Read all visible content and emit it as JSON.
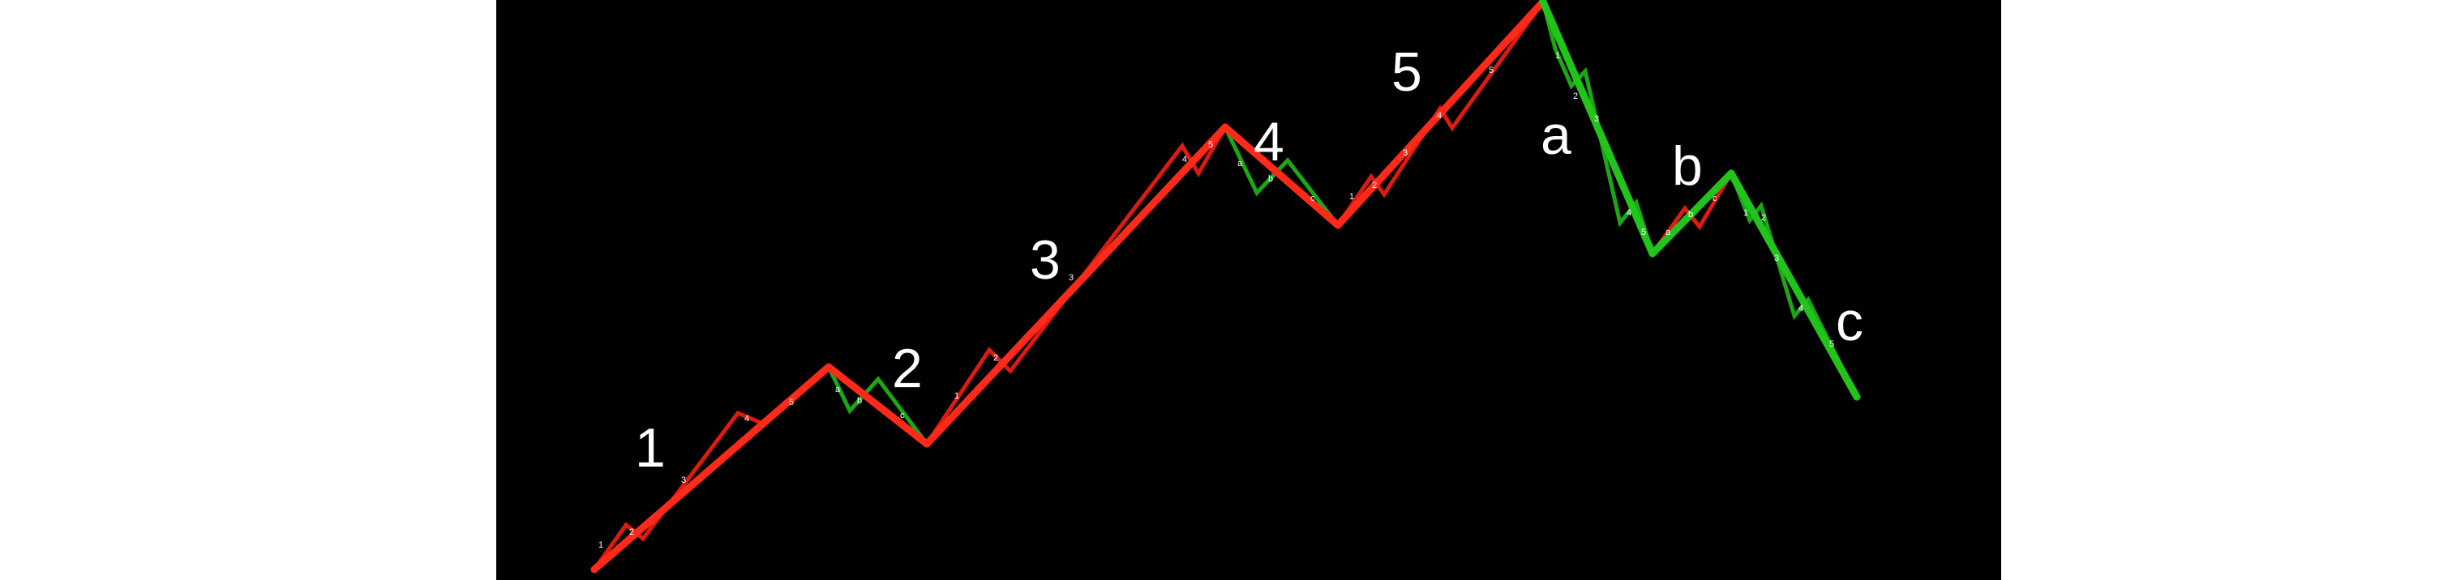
{
  "diagram": {
    "background_color": "#000000",
    "margin_color": "#ffffff",
    "impulse_color": "#ff2a1a",
    "impulse_sub_color": "#dd1b10",
    "correction_color": "#22c41c",
    "correction_sub_color": "#1aa814",
    "label_color": "#ffffff",
    "labels": {
      "wave1": "1",
      "wave2": "2",
      "wave3": "3",
      "wave4": "4",
      "wave5": "5",
      "waveA": "a",
      "waveB": "b",
      "waveC": "c"
    },
    "sub_labels": {
      "s1": "1",
      "s2": "2",
      "s3": "3",
      "s4": "4",
      "s5": "5",
      "sa": "a",
      "sb": "b",
      "sc": "c"
    }
  }
}
